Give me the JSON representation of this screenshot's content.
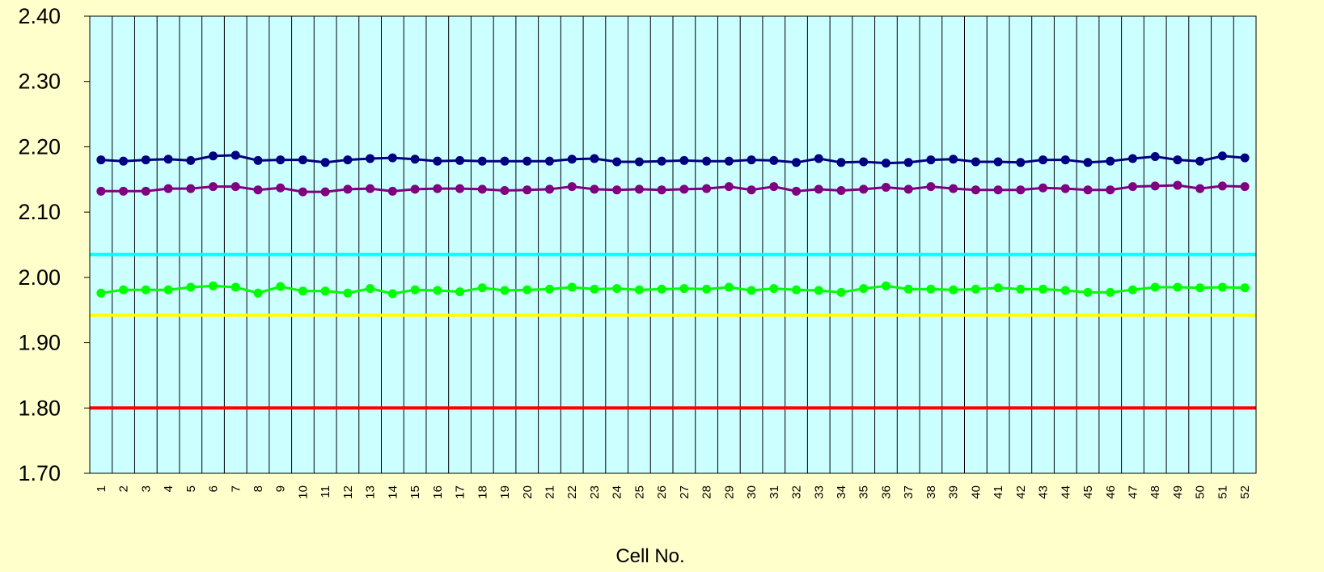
{
  "chart_data": {
    "type": "line",
    "title": "",
    "xlabel": "Cell No.",
    "ylabel": "",
    "ylim": [
      1.7,
      2.4
    ],
    "y_ticks": [
      "1.70",
      "1.80",
      "1.90",
      "2.00",
      "2.10",
      "2.20",
      "2.30",
      "2.40"
    ],
    "y_tick_values": [
      1.7,
      1.8,
      1.9,
      2.0,
      2.1,
      2.2,
      2.3,
      2.4
    ],
    "x": [
      1,
      2,
      3,
      4,
      5,
      6,
      7,
      8,
      9,
      10,
      11,
      12,
      13,
      14,
      15,
      16,
      17,
      18,
      19,
      20,
      21,
      22,
      23,
      24,
      25,
      26,
      27,
      28,
      29,
      30,
      31,
      32,
      33,
      34,
      35,
      36,
      37,
      38,
      39,
      40,
      41,
      42,
      43,
      44,
      45,
      46,
      47,
      48,
      49,
      50,
      51,
      52
    ],
    "x_tick_labels": [
      "1",
      "2",
      "3",
      "4",
      "5",
      "6",
      "7",
      "8",
      "9",
      "10",
      "11",
      "12",
      "13",
      "14",
      "15",
      "16",
      "17",
      "18",
      "19",
      "20",
      "21",
      "22",
      "23",
      "24",
      "25",
      "26",
      "27",
      "28",
      "29",
      "30",
      "31",
      "32",
      "33",
      "34",
      "35",
      "36",
      "37",
      "38",
      "39",
      "40",
      "41",
      "42",
      "43",
      "44",
      "45",
      "46",
      "47",
      "48",
      "49",
      "50",
      "51",
      "52"
    ],
    "grid": "vertical",
    "plot_background": "#CCFFFF",
    "page_background": "#FFFFCC",
    "series": [
      {
        "color": "#000080",
        "markers": true,
        "values": [
          2.18,
          2.178,
          2.18,
          2.181,
          2.179,
          2.186,
          2.187,
          2.179,
          2.18,
          2.18,
          2.176,
          2.18,
          2.182,
          2.183,
          2.181,
          2.178,
          2.179,
          2.178,
          2.178,
          2.178,
          2.178,
          2.181,
          2.182,
          2.177,
          2.177,
          2.178,
          2.179,
          2.178,
          2.178,
          2.18,
          2.179,
          2.176,
          2.182,
          2.176,
          2.177,
          2.175,
          2.176,
          2.18,
          2.181,
          2.177,
          2.177,
          2.176,
          2.18,
          2.18,
          2.176,
          2.178,
          2.182,
          2.185,
          2.18,
          2.178,
          2.186,
          2.183
        ]
      },
      {
        "color": "#800080",
        "markers": true,
        "values": [
          2.132,
          2.132,
          2.132,
          2.136,
          2.136,
          2.139,
          2.139,
          2.134,
          2.137,
          2.131,
          2.131,
          2.135,
          2.136,
          2.132,
          2.135,
          2.136,
          2.136,
          2.135,
          2.133,
          2.134,
          2.135,
          2.139,
          2.135,
          2.134,
          2.135,
          2.134,
          2.135,
          2.136,
          2.139,
          2.134,
          2.139,
          2.132,
          2.135,
          2.133,
          2.135,
          2.138,
          2.135,
          2.139,
          2.136,
          2.134,
          2.134,
          2.134,
          2.137,
          2.136,
          2.134,
          2.134,
          2.139,
          2.14,
          2.141,
          2.136,
          2.14,
          2.139
        ]
      },
      {
        "color": "#00FFFF",
        "markers": false,
        "values": [
          2.035,
          2.035,
          2.035,
          2.035,
          2.035,
          2.035,
          2.035,
          2.035,
          2.035,
          2.035,
          2.035,
          2.035,
          2.035,
          2.035,
          2.035,
          2.035,
          2.035,
          2.035,
          2.035,
          2.035,
          2.035,
          2.035,
          2.035,
          2.035,
          2.035,
          2.035,
          2.035,
          2.035,
          2.035,
          2.035,
          2.035,
          2.035,
          2.035,
          2.035,
          2.035,
          2.035,
          2.035,
          2.035,
          2.035,
          2.035,
          2.035,
          2.035,
          2.035,
          2.035,
          2.035,
          2.035,
          2.035,
          2.035,
          2.035,
          2.035,
          2.035,
          2.035
        ]
      },
      {
        "color": "#00FF00",
        "markers": true,
        "values": [
          1.976,
          1.981,
          1.981,
          1.981,
          1.985,
          1.987,
          1.985,
          1.976,
          1.986,
          1.979,
          1.979,
          1.976,
          1.983,
          1.975,
          1.981,
          1.98,
          1.978,
          1.984,
          1.98,
          1.981,
          1.982,
          1.985,
          1.982,
          1.983,
          1.981,
          1.982,
          1.983,
          1.982,
          1.985,
          1.98,
          1.983,
          1.981,
          1.98,
          1.977,
          1.983,
          1.987,
          1.982,
          1.982,
          1.981,
          1.982,
          1.984,
          1.982,
          1.982,
          1.98,
          1.977,
          1.977,
          1.981,
          1.985,
          1.985,
          1.984,
          1.985,
          1.984
        ]
      },
      {
        "color": "#FFFF00",
        "markers": false,
        "values": [
          1.942,
          1.942,
          1.942,
          1.942,
          1.942,
          1.942,
          1.942,
          1.942,
          1.942,
          1.942,
          1.942,
          1.942,
          1.942,
          1.942,
          1.942,
          1.942,
          1.942,
          1.942,
          1.942,
          1.942,
          1.942,
          1.942,
          1.942,
          1.942,
          1.942,
          1.942,
          1.942,
          1.942,
          1.942,
          1.942,
          1.942,
          1.942,
          1.942,
          1.942,
          1.942,
          1.942,
          1.942,
          1.942,
          1.942,
          1.942,
          1.942,
          1.942,
          1.942,
          1.942,
          1.942,
          1.942,
          1.942,
          1.942,
          1.942,
          1.942,
          1.942,
          1.942
        ]
      },
      {
        "color": "#FF0000",
        "markers": false,
        "values": [
          1.8,
          1.8,
          1.8,
          1.8,
          1.8,
          1.8,
          1.8,
          1.8,
          1.8,
          1.8,
          1.8,
          1.8,
          1.8,
          1.8,
          1.8,
          1.8,
          1.8,
          1.8,
          1.8,
          1.8,
          1.8,
          1.8,
          1.8,
          1.8,
          1.8,
          1.8,
          1.8,
          1.8,
          1.8,
          1.8,
          1.8,
          1.8,
          1.8,
          1.8,
          1.8,
          1.8,
          1.8,
          1.8,
          1.8,
          1.8,
          1.8,
          1.8,
          1.8,
          1.8,
          1.8,
          1.8,
          1.8,
          1.8,
          1.8,
          1.8,
          1.8,
          1.8
        ]
      }
    ]
  }
}
